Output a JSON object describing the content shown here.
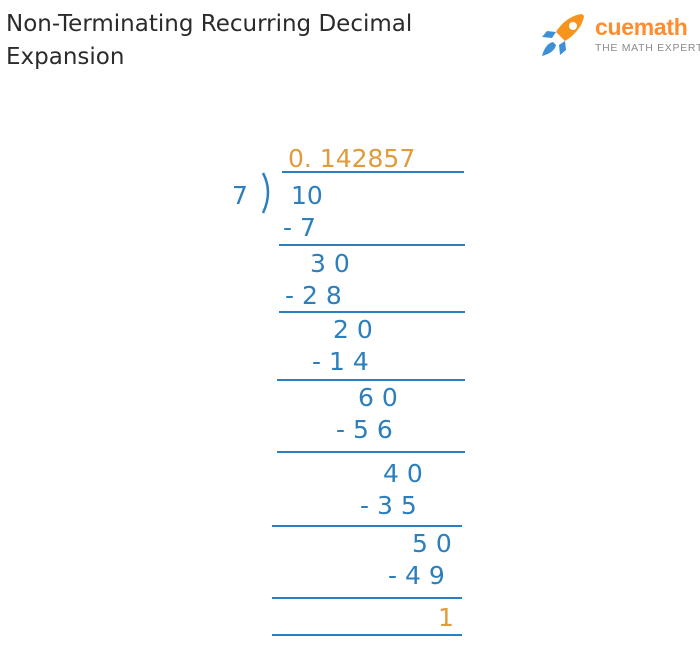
{
  "title": "Non-Terminating Recurring Decimal Expansion",
  "logo": {
    "icon": "rocket-icon",
    "brand": "cuemath",
    "tagline": "THE MATH EXPERT",
    "colors": {
      "rocket_orange": "#f7941d",
      "rocket_blue": "#3d8fd6",
      "brand_orange": "#ff8c2e"
    }
  },
  "division": {
    "divisor": "7",
    "quotient": "0. 142857",
    "steps": [
      {
        "dividend": "10",
        "subtract": "- 7"
      },
      {
        "dividend": "3 0",
        "subtract": "- 2 8"
      },
      {
        "dividend": "2 0",
        "subtract": "- 1 4"
      },
      {
        "dividend": "6 0",
        "subtract": "- 5 6"
      },
      {
        "dividend": "4 0",
        "subtract": "- 3 5"
      },
      {
        "dividend": "5 0",
        "subtract": "- 4 9"
      }
    ],
    "remainder": "1",
    "colors": {
      "digits": "#2c7fbd",
      "quotient": "#e09b3d",
      "remainder": "#e09b3d"
    }
  }
}
